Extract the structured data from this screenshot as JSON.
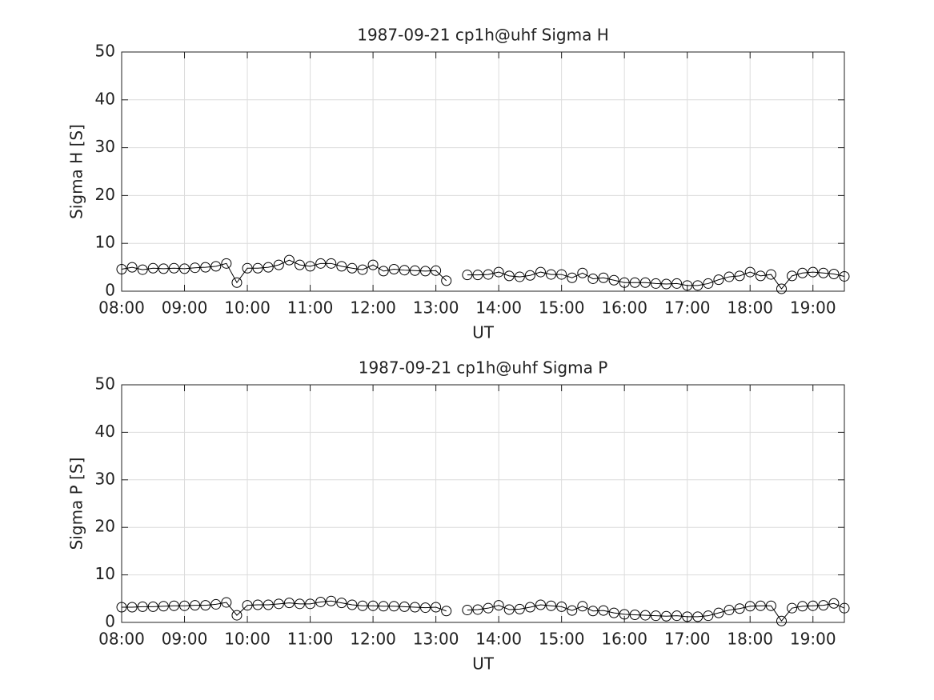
{
  "chart_data": [
    {
      "type": "line",
      "title": "1987-09-21  cp1h@uhf Sigma H",
      "xlabel": "UT",
      "ylabel": "Sigma H [S]",
      "x": [
        "08:00",
        "08:10",
        "08:20",
        "08:30",
        "08:40",
        "08:50",
        "09:00",
        "09:10",
        "09:20",
        "09:30",
        "09:40",
        "09:50",
        "10:00",
        "10:10",
        "10:20",
        "10:30",
        "10:40",
        "10:50",
        "11:00",
        "11:10",
        "11:20",
        "11:30",
        "11:40",
        "11:50",
        "12:00",
        "12:10",
        "12:20",
        "12:30",
        "12:40",
        "12:50",
        "13:00",
        "13:10",
        "13:20",
        "13:30",
        "13:40",
        "13:50",
        "14:00",
        "14:10",
        "14:20",
        "14:30",
        "14:40",
        "14:50",
        "15:00",
        "15:10",
        "15:20",
        "15:30",
        "15:40",
        "15:50",
        "16:00",
        "16:10",
        "16:20",
        "16:30",
        "16:40",
        "16:50",
        "17:00",
        "17:10",
        "17:20",
        "17:30",
        "17:40",
        "17:50",
        "18:00",
        "18:10",
        "18:20",
        "18:30",
        "18:40",
        "18:50",
        "19:00",
        "19:10",
        "19:20",
        "19:30"
      ],
      "values": [
        4.6,
        5.0,
        4.5,
        4.8,
        4.7,
        4.8,
        4.7,
        4.9,
        5.0,
        5.2,
        5.8,
        1.8,
        4.8,
        4.8,
        5.0,
        5.5,
        6.5,
        5.5,
        5.2,
        5.8,
        5.8,
        5.2,
        4.8,
        4.5,
        5.5,
        4.2,
        4.6,
        4.4,
        4.3,
        4.2,
        4.3,
        2.2,
        null,
        3.4,
        3.4,
        3.5,
        4.0,
        3.2,
        3.0,
        3.3,
        4.0,
        3.5,
        3.5,
        2.8,
        3.8,
        2.6,
        2.8,
        2.3,
        1.8,
        1.8,
        1.8,
        1.6,
        1.5,
        1.6,
        1.2,
        1.2,
        1.6,
        2.4,
        3.0,
        3.2,
        4.0,
        3.2,
        3.5,
        0.5,
        3.2,
        3.8,
        4.0,
        3.8,
        3.6,
        3.1
      ],
      "color": "#000000",
      "marker": "circle",
      "xlim": [
        "08:00",
        "19:30"
      ],
      "xticks": [
        "08:00",
        "09:00",
        "10:00",
        "11:00",
        "12:00",
        "13:00",
        "14:00",
        "15:00",
        "16:00",
        "17:00",
        "18:00",
        "19:00"
      ],
      "ylim": [
        0,
        50
      ],
      "yticks": [
        0,
        10,
        20,
        30,
        40,
        50
      ],
      "grid": true
    },
    {
      "type": "line",
      "title": "1987-09-21  cp1h@uhf Sigma P",
      "xlabel": "UT",
      "ylabel": "Sigma P [S]",
      "x": [
        "08:00",
        "08:10",
        "08:20",
        "08:30",
        "08:40",
        "08:50",
        "09:00",
        "09:10",
        "09:20",
        "09:30",
        "09:40",
        "09:50",
        "10:00",
        "10:10",
        "10:20",
        "10:30",
        "10:40",
        "10:50",
        "11:00",
        "11:10",
        "11:20",
        "11:30",
        "11:40",
        "11:50",
        "12:00",
        "12:10",
        "12:20",
        "12:30",
        "12:40",
        "12:50",
        "13:00",
        "13:10",
        "13:20",
        "13:30",
        "13:40",
        "13:50",
        "14:00",
        "14:10",
        "14:20",
        "14:30",
        "14:40",
        "14:50",
        "15:00",
        "15:10",
        "15:20",
        "15:30",
        "15:40",
        "15:50",
        "16:00",
        "16:10",
        "16:20",
        "16:30",
        "16:40",
        "16:50",
        "17:00",
        "17:10",
        "17:20",
        "17:30",
        "17:40",
        "17:50",
        "18:00",
        "18:10",
        "18:20",
        "18:30",
        "18:40",
        "18:50",
        "19:00",
        "19:10",
        "19:20",
        "19:30"
      ],
      "values": [
        3.2,
        3.2,
        3.3,
        3.3,
        3.4,
        3.5,
        3.5,
        3.6,
        3.6,
        3.8,
        4.2,
        1.5,
        3.6,
        3.7,
        3.7,
        3.9,
        4.1,
        3.9,
        3.9,
        4.3,
        4.5,
        4.1,
        3.7,
        3.5,
        3.5,
        3.4,
        3.4,
        3.3,
        3.2,
        3.1,
        3.2,
        2.4,
        null,
        2.6,
        2.7,
        3.0,
        3.6,
        2.7,
        2.8,
        3.2,
        3.7,
        3.5,
        3.3,
        2.5,
        3.4,
        2.4,
        2.5,
        2.0,
        1.7,
        1.6,
        1.5,
        1.4,
        1.3,
        1.4,
        1.2,
        1.2,
        1.4,
        2.0,
        2.6,
        2.9,
        3.4,
        3.5,
        3.5,
        0.3,
        3.0,
        3.4,
        3.5,
        3.6,
        4.0,
        3.0
      ],
      "color": "#000000",
      "marker": "circle",
      "xlim": [
        "08:00",
        "19:30"
      ],
      "xticks": [
        "08:00",
        "09:00",
        "10:00",
        "11:00",
        "12:00",
        "13:00",
        "14:00",
        "15:00",
        "16:00",
        "17:00",
        "18:00",
        "19:00"
      ],
      "ylim": [
        0,
        50
      ],
      "yticks": [
        0,
        10,
        20,
        30,
        40,
        50
      ],
      "grid": true
    }
  ]
}
